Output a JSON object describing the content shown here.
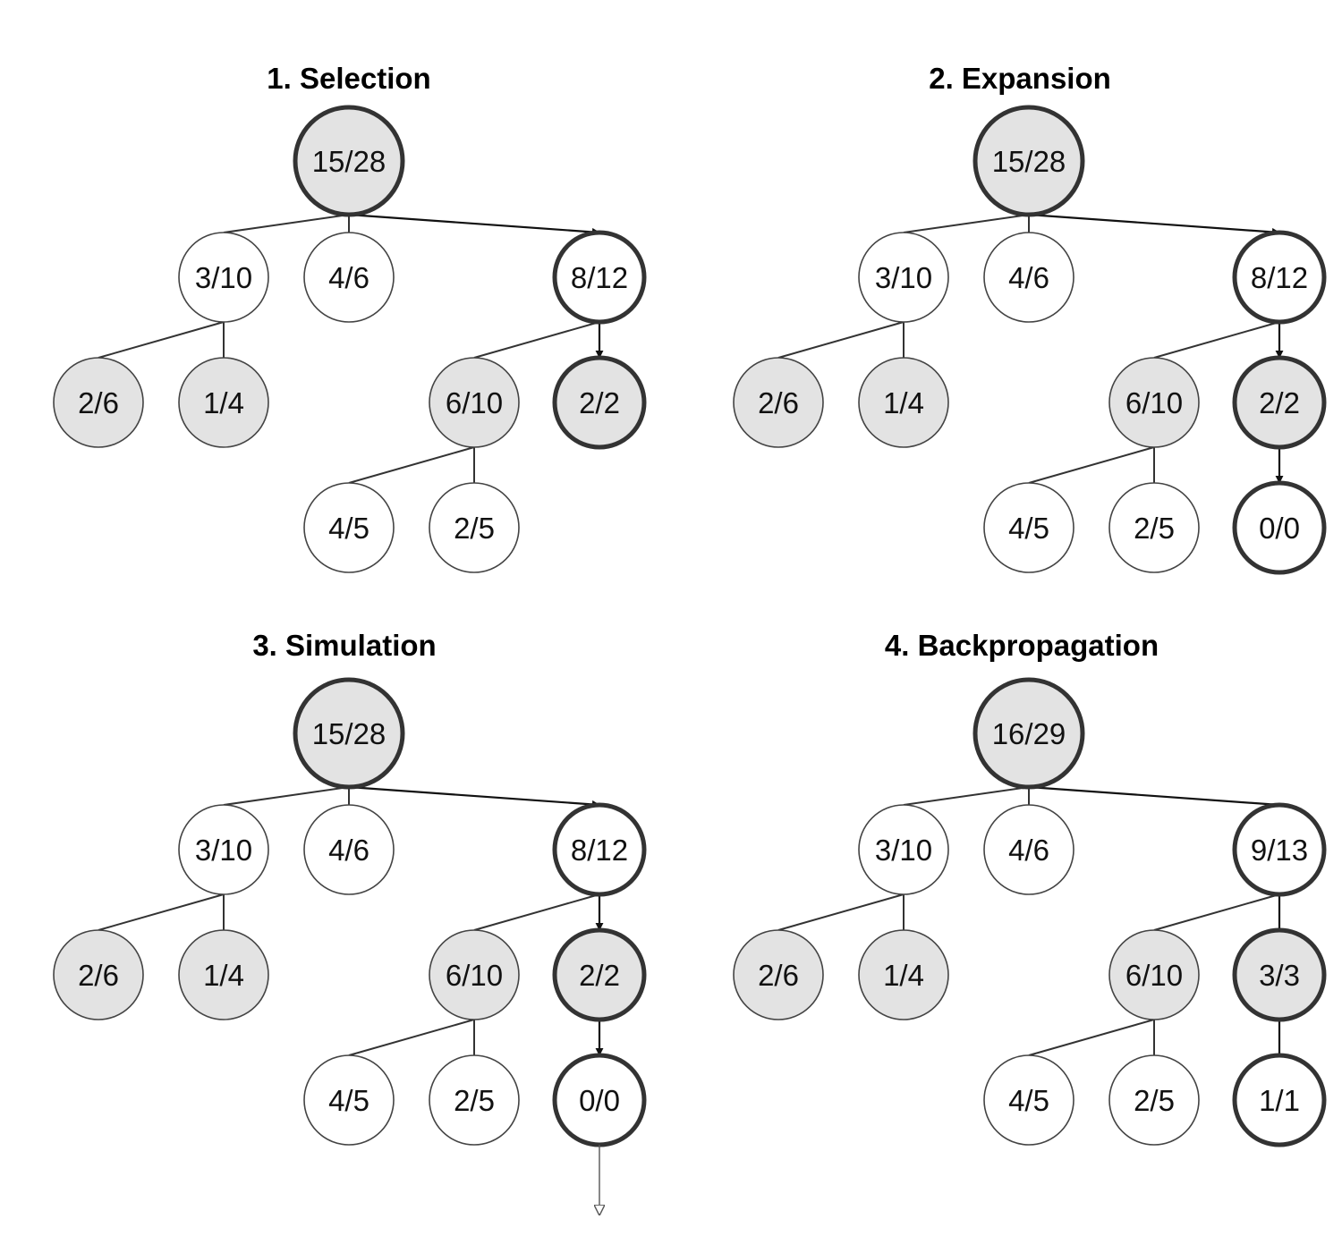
{
  "colors": {
    "shaded": "#e3e3e3",
    "white": "#ffffff",
    "stroke": "#333333"
  },
  "panels": [
    {
      "title": "1. Selection",
      "nodes": [
        {
          "id": "r",
          "label": "15/28",
          "fill": "shaded",
          "bold": true
        },
        {
          "id": "a",
          "label": "3/10",
          "fill": "white"
        },
        {
          "id": "b",
          "label": "4/6",
          "fill": "white"
        },
        {
          "id": "c",
          "label": "8/12",
          "fill": "white",
          "bold": true
        },
        {
          "id": "d",
          "label": "2/6",
          "fill": "shaded"
        },
        {
          "id": "e",
          "label": "1/4",
          "fill": "shaded"
        },
        {
          "id": "f",
          "label": "6/10",
          "fill": "shaded"
        },
        {
          "id": "g",
          "label": "2/2",
          "fill": "shaded",
          "bold": true
        },
        {
          "id": "h",
          "label": "4/5",
          "fill": "white"
        },
        {
          "id": "i",
          "label": "2/5",
          "fill": "white"
        }
      ],
      "arrows": [
        [
          "r",
          "c"
        ],
        [
          "c",
          "g"
        ]
      ]
    },
    {
      "title": "2. Expansion",
      "nodes": [
        {
          "id": "r",
          "label": "15/28",
          "fill": "shaded",
          "bold": true
        },
        {
          "id": "a",
          "label": "3/10",
          "fill": "white"
        },
        {
          "id": "b",
          "label": "4/6",
          "fill": "white"
        },
        {
          "id": "c",
          "label": "8/12",
          "fill": "white",
          "bold": true
        },
        {
          "id": "d",
          "label": "2/6",
          "fill": "shaded"
        },
        {
          "id": "e",
          "label": "1/4",
          "fill": "shaded"
        },
        {
          "id": "f",
          "label": "6/10",
          "fill": "shaded"
        },
        {
          "id": "g",
          "label": "2/2",
          "fill": "shaded",
          "bold": true
        },
        {
          "id": "h",
          "label": "4/5",
          "fill": "white"
        },
        {
          "id": "i",
          "label": "2/5",
          "fill": "white"
        },
        {
          "id": "j",
          "label": "0/0",
          "fill": "white",
          "bold": true
        }
      ],
      "arrows": [
        [
          "r",
          "c"
        ],
        [
          "c",
          "g"
        ],
        [
          "g",
          "j"
        ]
      ]
    },
    {
      "title": "3. Simulation",
      "nodes": [
        {
          "id": "r",
          "label": "15/28",
          "fill": "shaded",
          "bold": true
        },
        {
          "id": "a",
          "label": "3/10",
          "fill": "white"
        },
        {
          "id": "b",
          "label": "4/6",
          "fill": "white"
        },
        {
          "id": "c",
          "label": "8/12",
          "fill": "white",
          "bold": true
        },
        {
          "id": "d",
          "label": "2/6",
          "fill": "shaded"
        },
        {
          "id": "e",
          "label": "1/4",
          "fill": "shaded"
        },
        {
          "id": "f",
          "label": "6/10",
          "fill": "shaded"
        },
        {
          "id": "g",
          "label": "2/2",
          "fill": "shaded",
          "bold": true
        },
        {
          "id": "h",
          "label": "4/5",
          "fill": "white"
        },
        {
          "id": "i",
          "label": "2/5",
          "fill": "white"
        },
        {
          "id": "j",
          "label": "0/0",
          "fill": "white",
          "bold": true
        }
      ],
      "arrows": [
        [
          "r",
          "c"
        ],
        [
          "c",
          "g"
        ],
        [
          "g",
          "j"
        ]
      ],
      "rollout": true
    },
    {
      "title": "4. Backpropagation",
      "nodes": [
        {
          "id": "r",
          "label": "16/29",
          "fill": "shaded",
          "bold": true
        },
        {
          "id": "a",
          "label": "3/10",
          "fill": "white"
        },
        {
          "id": "b",
          "label": "4/6",
          "fill": "white"
        },
        {
          "id": "c",
          "label": "9/13",
          "fill": "white",
          "bold": true
        },
        {
          "id": "d",
          "label": "2/6",
          "fill": "shaded"
        },
        {
          "id": "e",
          "label": "1/4",
          "fill": "shaded"
        },
        {
          "id": "f",
          "label": "6/10",
          "fill": "shaded"
        },
        {
          "id": "g",
          "label": "3/3",
          "fill": "shaded",
          "bold": true
        },
        {
          "id": "h",
          "label": "4/5",
          "fill": "white"
        },
        {
          "id": "i",
          "label": "2/5",
          "fill": "white"
        },
        {
          "id": "j",
          "label": "1/1",
          "fill": "white",
          "bold": true
        }
      ],
      "arrows": [
        [
          "c",
          "r"
        ],
        [
          "g",
          "c"
        ],
        [
          "j",
          "g"
        ]
      ]
    }
  ]
}
